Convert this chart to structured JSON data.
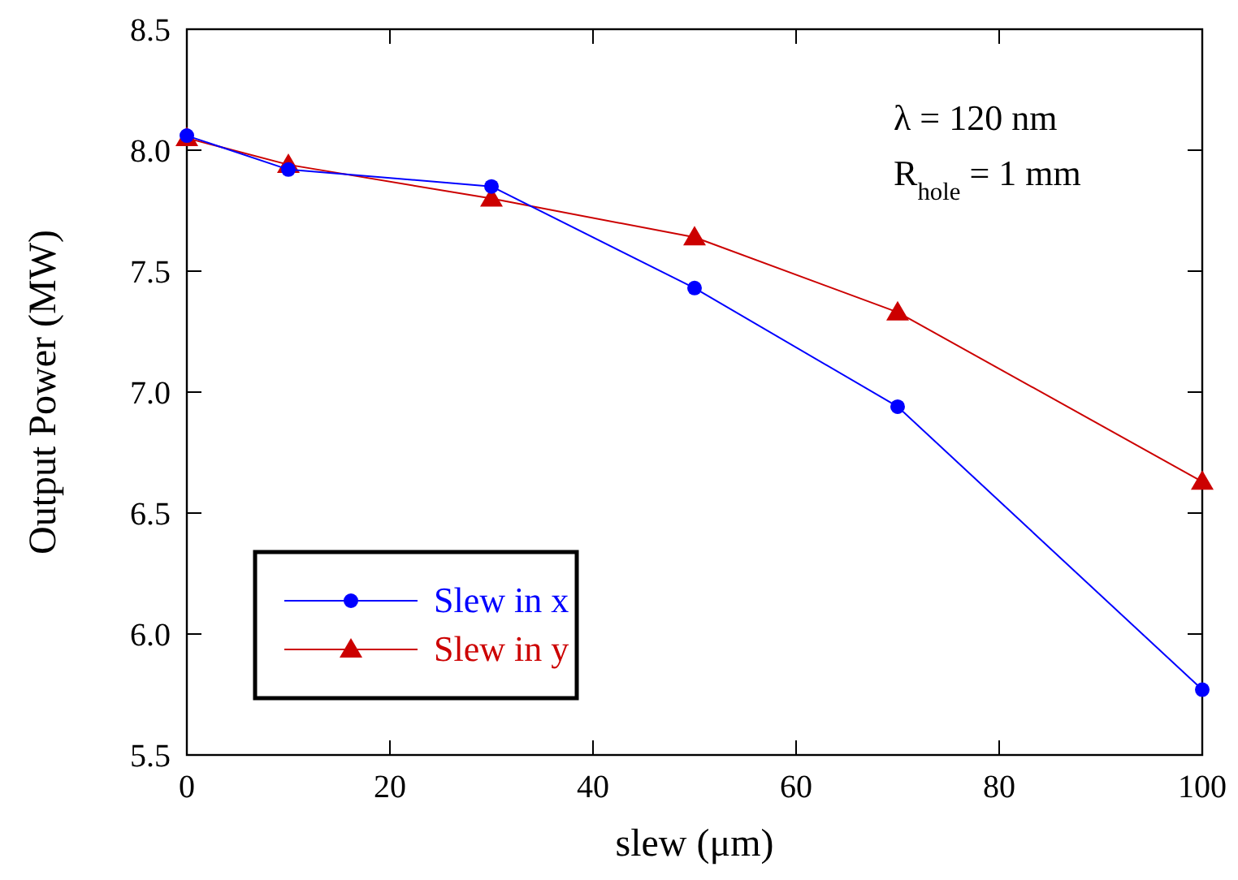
{
  "chart_data": {
    "type": "line",
    "xlabel": "slew (μm)",
    "ylabel": "Output Power (MW)",
    "x": [
      0,
      10,
      30,
      50,
      70,
      100
    ],
    "series": [
      {
        "name": "Slew in x",
        "color": "#0000ff",
        "marker": "circle",
        "values": [
          8.06,
          7.92,
          7.85,
          7.43,
          6.94,
          5.77
        ]
      },
      {
        "name": "Slew in y",
        "color": "#cc0000",
        "marker": "triangle",
        "values": [
          8.05,
          7.94,
          7.8,
          7.64,
          7.33,
          6.63
        ]
      }
    ],
    "xlim": [
      0,
      100
    ],
    "xticks": [
      0,
      20,
      40,
      60,
      80,
      100
    ],
    "ylim": [
      5.5,
      8.5
    ],
    "yticks": [
      5.5,
      {
        "value": 6,
        "label": "6.0"
      },
      6.5,
      {
        "value": 7,
        "label": "7.0"
      },
      7.5,
      {
        "value": 8,
        "label": "8.0"
      },
      8.5
    ],
    "annotations": [
      "λ = 120 nm",
      "R$_{hole}$ = 1 mm"
    ],
    "legend": "bottom left",
    "grid": false
  }
}
